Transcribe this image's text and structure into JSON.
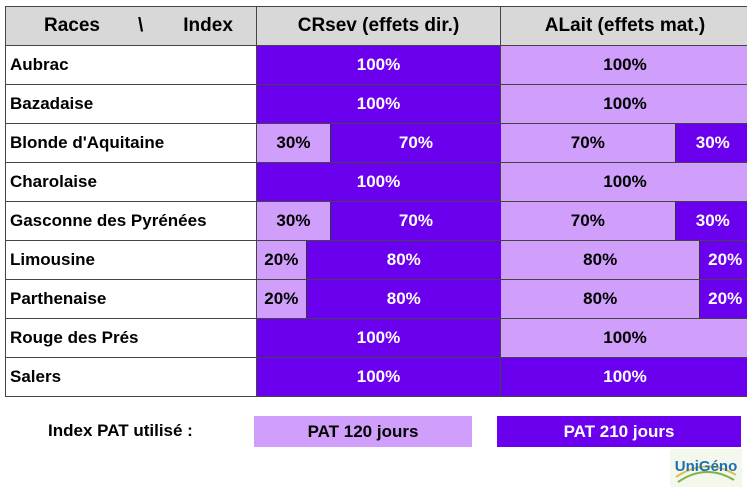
{
  "header": {
    "races": "Races",
    "separator": "\\",
    "index": "Index",
    "col1": "CRsev (effets dir.)",
    "col2": "ALait (effets mat.)"
  },
  "colors": {
    "pat120": "#cf9ffb",
    "pat210": "#6a00ee"
  },
  "rows": [
    {
      "race": "Aubrac",
      "crsev": {
        "pat120": 0,
        "pat210": 100
      },
      "alait": {
        "pat120": 100,
        "pat210": 0
      }
    },
    {
      "race": "Bazadaise",
      "crsev": {
        "pat120": 0,
        "pat210": 100
      },
      "alait": {
        "pat120": 100,
        "pat210": 0
      }
    },
    {
      "race": "Blonde d'Aquitaine",
      "crsev": {
        "pat120": 30,
        "pat210": 70
      },
      "alait": {
        "pat120": 70,
        "pat210": 30
      }
    },
    {
      "race": "Charolaise",
      "crsev": {
        "pat120": 0,
        "pat210": 100
      },
      "alait": {
        "pat120": 100,
        "pat210": 0
      }
    },
    {
      "race": "Gasconne des Pyrénées",
      "crsev": {
        "pat120": 30,
        "pat210": 70
      },
      "alait": {
        "pat120": 70,
        "pat210": 30
      }
    },
    {
      "race": "Limousine",
      "crsev": {
        "pat120": 20,
        "pat210": 80
      },
      "alait": {
        "pat120": 80,
        "pat210": 20
      }
    },
    {
      "race": "Parthenaise",
      "crsev": {
        "pat120": 20,
        "pat210": 80
      },
      "alait": {
        "pat120": 80,
        "pat210": 20
      }
    },
    {
      "race": "Rouge des Prés",
      "crsev": {
        "pat120": 0,
        "pat210": 100
      },
      "alait": {
        "pat120": 100,
        "pat210": 0
      }
    },
    {
      "race": "Salers",
      "crsev": {
        "pat120": 0,
        "pat210": 100
      },
      "alait": {
        "pat120": 0,
        "pat210": 100
      }
    }
  ],
  "legend": {
    "label": "Index PAT utilisé :",
    "pat120": "PAT 120 jours",
    "pat210": "PAT 210 jours"
  },
  "logo": {
    "text": "UniGéno"
  }
}
